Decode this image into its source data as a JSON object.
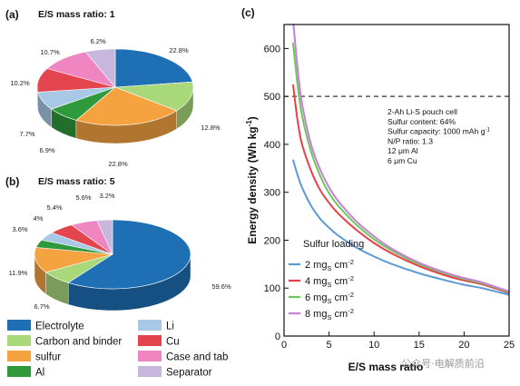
{
  "chart_data": [
    {
      "type": "pie",
      "panel_label": "(a)",
      "title": "E/S mass ratio: 1",
      "categories": [
        "Electrolyte",
        "Carbon and binder",
        "sulfur",
        "Al",
        "Li",
        "Cu",
        "Case and tab",
        "Separator"
      ],
      "values": [
        22.8,
        12.8,
        22.8,
        6.9,
        7.7,
        10.2,
        10.7,
        6.2
      ],
      "labels": [
        "22.8%",
        "12.8%",
        "22.8%",
        "6.9%",
        "7.7%",
        "10.2%",
        "10.7%",
        "6.2%"
      ]
    },
    {
      "type": "pie",
      "panel_label": "(b)",
      "title": "E/S mass ratio: 5",
      "categories": [
        "Electrolyte",
        "Carbon and binder",
        "sulfur",
        "Al",
        "Li",
        "Cu",
        "Case and tab",
        "Separator"
      ],
      "values": [
        59.6,
        6.7,
        11.9,
        3.6,
        4,
        5.4,
        5.6,
        3.2
      ],
      "labels": [
        "59.6%",
        "6.7%",
        "11.9%",
        "3.6%",
        "4%",
        "5.4%",
        "5.6%",
        "3.2%"
      ]
    },
    {
      "type": "line",
      "panel_label": "(c)",
      "xlabel": "E/S mass ratio",
      "ylabel": "Energy density (Wh kg",
      "ylabel_sup": "-1",
      "ylabel_close": ")",
      "xlim": [
        0,
        25
      ],
      "ylim": [
        0,
        650
      ],
      "xticks": [
        0,
        5,
        10,
        15,
        20,
        25
      ],
      "yticks": [
        0,
        100,
        200,
        300,
        400,
        500,
        600
      ],
      "reference_line": {
        "y": 500,
        "style": "dashed",
        "color": "#333333"
      },
      "annotation": [
        "2-Ah Li-S pouch cell",
        "Sulfur content: 64%",
        "Sulfur capacity: 1000 mAh g",
        "N/P ratio: 1.3",
        "12 μm Al",
        "6 μm Cu"
      ],
      "annotation_sup": "-1",
      "legend_title": "Sulfur loading",
      "legend_position": "bottom-left",
      "x": [
        1,
        1.5,
        2,
        3,
        4,
        5,
        6,
        8,
        10,
        12,
        15,
        18,
        20,
        22,
        25
      ],
      "series": [
        {
          "name": "2 mg",
          "sub": "S",
          "unit": " cm",
          "sup": "-2",
          "color": "#5b9bd5",
          "values": [
            368,
            336,
            310,
            272,
            245,
            226,
            210,
            185,
            166,
            150,
            131,
            116,
            107,
            100,
            86
          ]
        },
        {
          "name": "4 mg",
          "sub": "S",
          "unit": " cm",
          "sup": "-2",
          "color": "#e8404a",
          "values": [
            525,
            450,
            400,
            345,
            305,
            278,
            256,
            222,
            194,
            172,
            146,
            126,
            116,
            108,
            90
          ]
        },
        {
          "name": "6 mg",
          "sub": "S",
          "unit": " cm",
          "sup": "-2",
          "color": "#6cc75a",
          "values": [
            612,
            525,
            460,
            385,
            335,
            298,
            272,
            233,
            202,
            178,
            150,
            130,
            119,
            110,
            92
          ]
        },
        {
          "name": "8 mg",
          "sub": "S",
          "unit": " cm",
          "sup": "-2",
          "color": "#c77fd8",
          "values": [
            660,
            560,
            485,
            400,
            348,
            310,
            282,
            240,
            208,
            182,
            153,
            132,
            121,
            112,
            93
          ]
        }
      ]
    }
  ],
  "legend": {
    "items": [
      {
        "label": "Electrolyte",
        "color": "#1f6fb5"
      },
      {
        "label": "Carbon and binder",
        "color": "#a8d87a"
      },
      {
        "label": "sulfur",
        "color": "#f5a341"
      },
      {
        "label": "Al",
        "color": "#2f9a3c"
      },
      {
        "label": "Li",
        "color": "#a9c8e6"
      },
      {
        "label": "Cu",
        "color": "#e2454e"
      },
      {
        "label": "Case and tab",
        "color": "#ef86c2"
      },
      {
        "label": "Separator",
        "color": "#c7b7dc"
      }
    ]
  },
  "watermark": {
    "text": "公众号·电解质前沿"
  }
}
